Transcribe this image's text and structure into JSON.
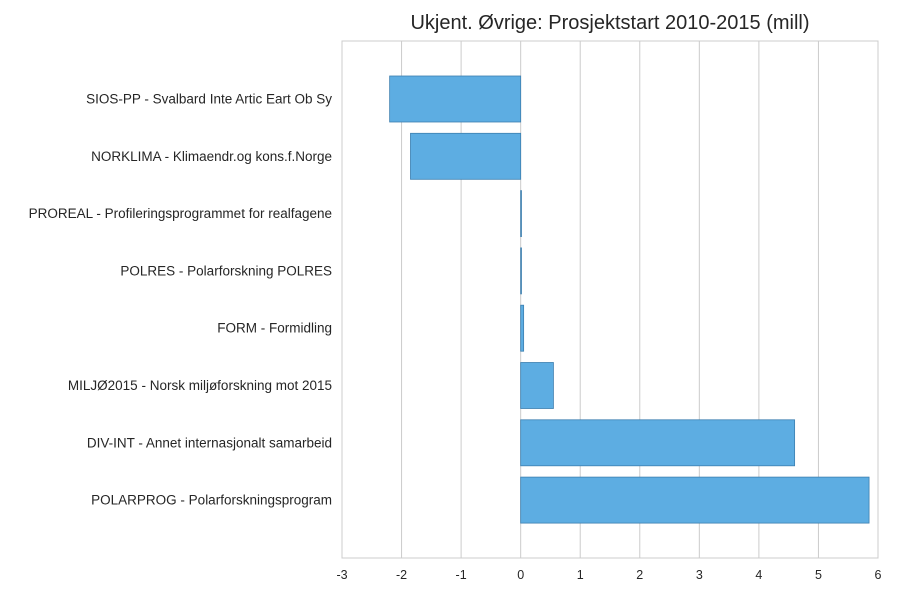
{
  "chart_data": {
    "type": "bar",
    "orientation": "horizontal",
    "title": "Ukjent. Øvrige: Prosjektstart 2010-2015 (mill)",
    "xlabel": "",
    "ylabel": "",
    "xlim": [
      -3,
      6
    ],
    "xticks": [
      -3,
      -2,
      -1,
      0,
      1,
      2,
      3,
      4,
      5,
      6
    ],
    "grid": "vertical",
    "categories": [
      "SIOS-PP - Svalbard Inte Artic Eart Ob Sy",
      "NORKLIMA - Klimaendr.og kons.f.Norge",
      "PROREAL - Profileringsprogrammet for realfagene",
      "POLRES - Polarforskning POLRES",
      "FORM - Formidling",
      "MILJØ2015 - Norsk miljøforskning mot 2015",
      "DIV-INT - Annet internasjonalt samarbeid",
      "POLARPROG - Polarforskningsprogram"
    ],
    "values": [
      -2.2,
      -1.85,
      0.0,
      0.0,
      0.05,
      0.55,
      4.6,
      5.85
    ],
    "colors": {
      "bar": "#5dade2",
      "bar_edge": "#3c7fb0",
      "grid": "#cccccc",
      "frame": "#cccccc"
    }
  }
}
